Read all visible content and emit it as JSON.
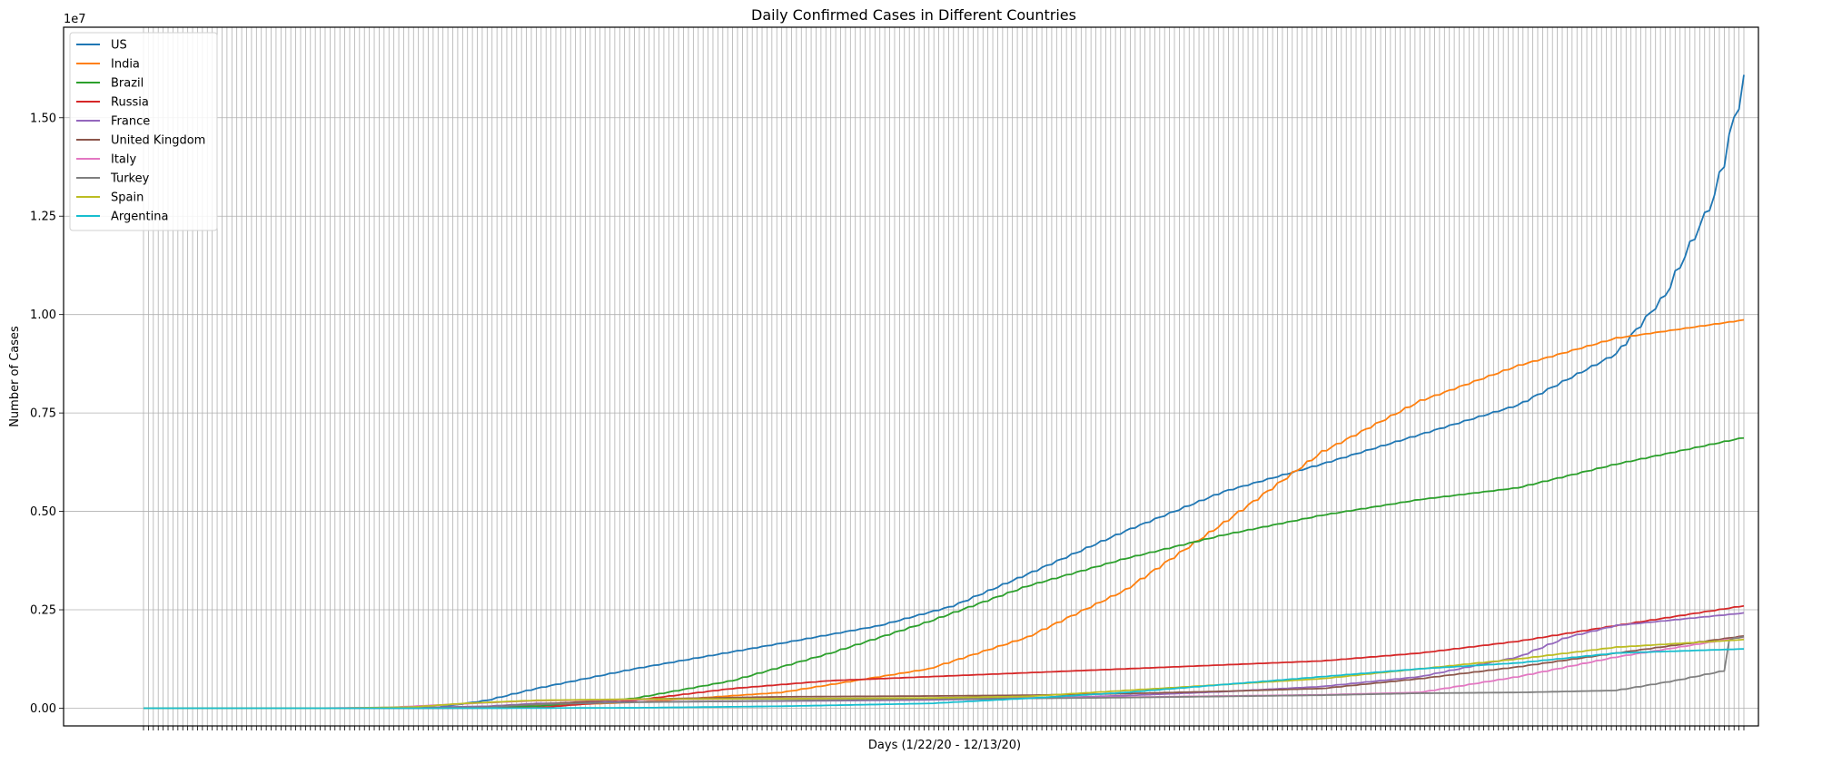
{
  "chart_data": {
    "type": "line",
    "title": "Daily Confirmed Cases in Different Countries",
    "xlabel": "Days (1/22/20 - 12/13/20)",
    "ylabel": "Number of Cases",
    "y_scale_label": "1e7",
    "ylim": [
      -450000,
      17300000
    ],
    "yticks": [
      0,
      2500000,
      5000000,
      7500000,
      10000000,
      12500000,
      15000000
    ],
    "ytick_labels": [
      "0.00",
      "0.25",
      "0.50",
      "0.75",
      "1.00",
      "1.25",
      "1.50"
    ],
    "x_points": 327,
    "grid": true,
    "legend_position": "upper left",
    "series": [
      {
        "name": "US",
        "color": "#1f77b4",
        "knots": [
          [
            0,
            0
          ],
          [
            40,
            0
          ],
          [
            60,
            20000
          ],
          [
            70,
            200000
          ],
          [
            80,
            500000
          ],
          [
            100,
            1000000
          ],
          [
            130,
            1650000
          ],
          [
            150,
            2100000
          ],
          [
            165,
            2600000
          ],
          [
            180,
            3400000
          ],
          [
            200,
            4500000
          ],
          [
            220,
            5500000
          ],
          [
            240,
            6200000
          ],
          [
            260,
            6950000
          ],
          [
            280,
            7700000
          ],
          [
            300,
            9000000
          ],
          [
            310,
            10500000
          ],
          [
            320,
            13000000
          ],
          [
            327,
            16400000
          ]
        ]
      },
      {
        "name": "India",
        "color": "#ff7f0e",
        "knots": [
          [
            0,
            0
          ],
          [
            60,
            0
          ],
          [
            80,
            60000
          ],
          [
            100,
            150000
          ],
          [
            130,
            400000
          ],
          [
            160,
            1000000
          ],
          [
            180,
            1800000
          ],
          [
            200,
            3000000
          ],
          [
            220,
            4700000
          ],
          [
            240,
            6500000
          ],
          [
            260,
            7800000
          ],
          [
            280,
            8700000
          ],
          [
            300,
            9400000
          ],
          [
            327,
            9880000
          ]
        ]
      },
      {
        "name": "Brazil",
        "color": "#2ca02c",
        "knots": [
          [
            0,
            0
          ],
          [
            60,
            0
          ],
          [
            80,
            50000
          ],
          [
            100,
            250000
          ],
          [
            120,
            700000
          ],
          [
            140,
            1400000
          ],
          [
            160,
            2200000
          ],
          [
            180,
            3100000
          ],
          [
            200,
            3800000
          ],
          [
            220,
            4400000
          ],
          [
            240,
            4900000
          ],
          [
            260,
            5300000
          ],
          [
            280,
            5600000
          ],
          [
            300,
            6200000
          ],
          [
            327,
            6900000
          ]
        ]
      },
      {
        "name": "Russia",
        "color": "#d62728",
        "knots": [
          [
            0,
            0
          ],
          [
            60,
            0
          ],
          [
            80,
            10000
          ],
          [
            100,
            200000
          ],
          [
            120,
            500000
          ],
          [
            140,
            700000
          ],
          [
            160,
            800000
          ],
          [
            180,
            900000
          ],
          [
            200,
            1000000
          ],
          [
            220,
            1100000
          ],
          [
            240,
            1200000
          ],
          [
            260,
            1400000
          ],
          [
            280,
            1700000
          ],
          [
            300,
            2100000
          ],
          [
            327,
            2620000
          ]
        ]
      },
      {
        "name": "France",
        "color": "#9467bd",
        "knots": [
          [
            0,
            0
          ],
          [
            50,
            0
          ],
          [
            70,
            50000
          ],
          [
            80,
            120000
          ],
          [
            100,
            160000
          ],
          [
            130,
            180000
          ],
          [
            160,
            210000
          ],
          [
            180,
            250000
          ],
          [
            200,
            320000
          ],
          [
            220,
            420000
          ],
          [
            240,
            550000
          ],
          [
            260,
            800000
          ],
          [
            280,
            1300000
          ],
          [
            290,
            1800000
          ],
          [
            300,
            2100000
          ],
          [
            327,
            2430000
          ]
        ]
      },
      {
        "name": "United Kingdom",
        "color": "#8c564b",
        "knots": [
          [
            0,
            0
          ],
          [
            55,
            0
          ],
          [
            70,
            30000
          ],
          [
            80,
            100000
          ],
          [
            100,
            230000
          ],
          [
            130,
            290000
          ],
          [
            160,
            310000
          ],
          [
            180,
            330000
          ],
          [
            200,
            370000
          ],
          [
            220,
            430000
          ],
          [
            240,
            500000
          ],
          [
            260,
            750000
          ],
          [
            280,
            1050000
          ],
          [
            300,
            1400000
          ],
          [
            327,
            1850000
          ]
        ]
      },
      {
        "name": "Italy",
        "color": "#e377c2",
        "knots": [
          [
            0,
            0
          ],
          [
            35,
            0
          ],
          [
            50,
            20000
          ],
          [
            60,
            80000
          ],
          [
            70,
            140000
          ],
          [
            80,
            190000
          ],
          [
            100,
            220000
          ],
          [
            130,
            240000
          ],
          [
            160,
            250000
          ],
          [
            200,
            280000
          ],
          [
            240,
            340000
          ],
          [
            260,
            400000
          ],
          [
            280,
            800000
          ],
          [
            300,
            1300000
          ],
          [
            327,
            1830000
          ]
        ]
      },
      {
        "name": "Turkey",
        "color": "#7f7f7f",
        "knots": [
          [
            0,
            0
          ],
          [
            55,
            0
          ],
          [
            70,
            30000
          ],
          [
            80,
            100000
          ],
          [
            100,
            150000
          ],
          [
            130,
            190000
          ],
          [
            160,
            230000
          ],
          [
            200,
            270000
          ],
          [
            240,
            330000
          ],
          [
            260,
            380000
          ],
          [
            280,
            400000
          ],
          [
            300,
            450000
          ],
          [
            312,
            700000
          ],
          [
            322,
            950000
          ],
          [
            323,
            1750000
          ],
          [
            327,
            1840000
          ]
        ]
      },
      {
        "name": "Spain",
        "color": "#bcbd22",
        "knots": [
          [
            0,
            0
          ],
          [
            40,
            0
          ],
          [
            55,
            30000
          ],
          [
            65,
            120000
          ],
          [
            80,
            200000
          ],
          [
            100,
            230000
          ],
          [
            130,
            240000
          ],
          [
            160,
            260000
          ],
          [
            180,
            300000
          ],
          [
            200,
            450000
          ],
          [
            220,
            600000
          ],
          [
            240,
            750000
          ],
          [
            260,
            1000000
          ],
          [
            280,
            1250000
          ],
          [
            300,
            1550000
          ],
          [
            327,
            1750000
          ]
        ]
      },
      {
        "name": "Argentina",
        "color": "#17becf",
        "knots": [
          [
            0,
            0
          ],
          [
            70,
            0
          ],
          [
            100,
            10000
          ],
          [
            130,
            50000
          ],
          [
            160,
            120000
          ],
          [
            180,
            250000
          ],
          [
            200,
            400000
          ],
          [
            220,
            600000
          ],
          [
            240,
            800000
          ],
          [
            260,
            1000000
          ],
          [
            280,
            1150000
          ],
          [
            300,
            1400000
          ],
          [
            327,
            1510000
          ]
        ]
      }
    ]
  }
}
